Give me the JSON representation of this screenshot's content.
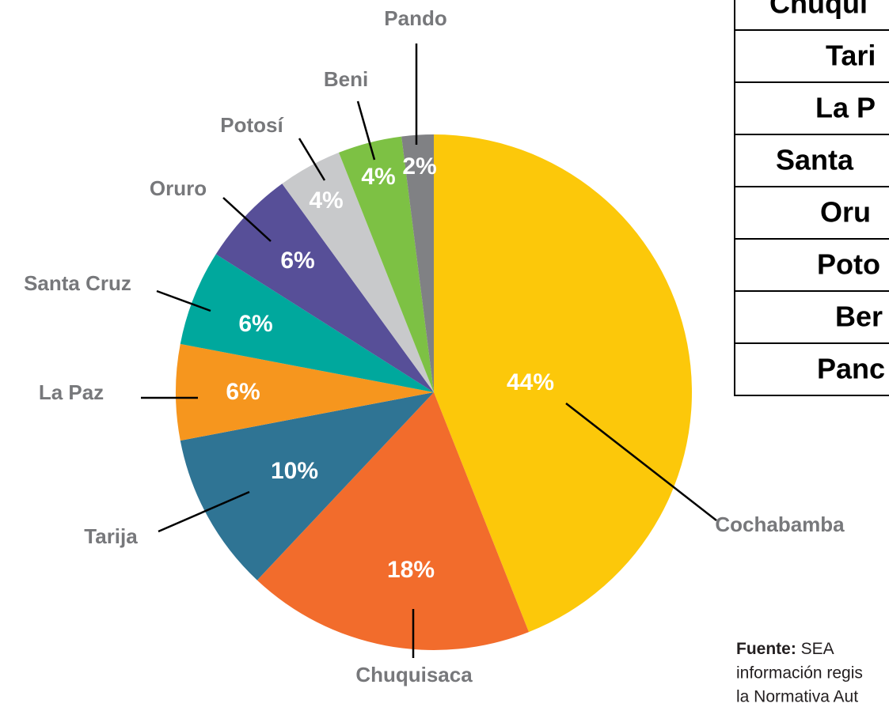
{
  "chart_data": {
    "type": "pie",
    "categories": [
      "Cochabamba",
      "Chuquisaca",
      "Tarija",
      "La Paz",
      "Santa Cruz",
      "Oruro",
      "Potosí",
      "Beni",
      "Pando"
    ],
    "values": [
      44,
      18,
      10,
      6,
      6,
      6,
      4,
      4,
      2
    ],
    "value_labels": [
      "44%",
      "18%",
      "10%",
      "6%",
      "6%",
      "6%",
      "4%",
      "4%",
      "2%"
    ],
    "colors": [
      "#fcc80a",
      "#f26c2c",
      "#2f7494",
      "#f6961e",
      "#00a89d",
      "#574f98",
      "#c8c9cb",
      "#7dc144",
      "#808184"
    ]
  },
  "table": {
    "rows": [
      "Chuqui",
      "Tari",
      "La P",
      "Santa",
      "Oru",
      "Poto",
      "Ber",
      "Panc"
    ]
  },
  "source": {
    "label": "Fuente:",
    "lines": [
      "SEA",
      "información regis",
      "la Normativa Aut"
    ]
  }
}
